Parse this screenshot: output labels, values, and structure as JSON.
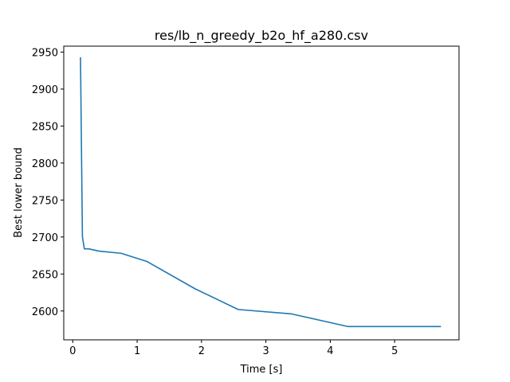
{
  "chart_data": {
    "type": "line",
    "title": "res/lb_n_greedy_b2o_hf_a280.csv",
    "xlabel": "Time [s]",
    "ylabel": "Best lower bound",
    "xlim": [
      -0.14,
      6.0
    ],
    "ylim": [
      2561,
      2958
    ],
    "xticks": [
      0,
      1,
      2,
      3,
      4,
      5
    ],
    "yticks": [
      2600,
      2650,
      2700,
      2750,
      2800,
      2850,
      2900,
      2950
    ],
    "grid": false,
    "line_color": "#1f77b4",
    "series": [
      {
        "x": [
          0.12,
          0.15,
          0.18,
          0.25,
          0.4,
          0.75,
          1.15,
          1.9,
          2.57,
          3.4,
          4.27,
          4.6,
          5.0,
          5.72
        ],
        "y": [
          2943,
          2700,
          2684,
          2684,
          2681,
          2678,
          2667,
          2630,
          2602,
          2596,
          2579,
          2579,
          2579,
          2579
        ]
      }
    ]
  }
}
